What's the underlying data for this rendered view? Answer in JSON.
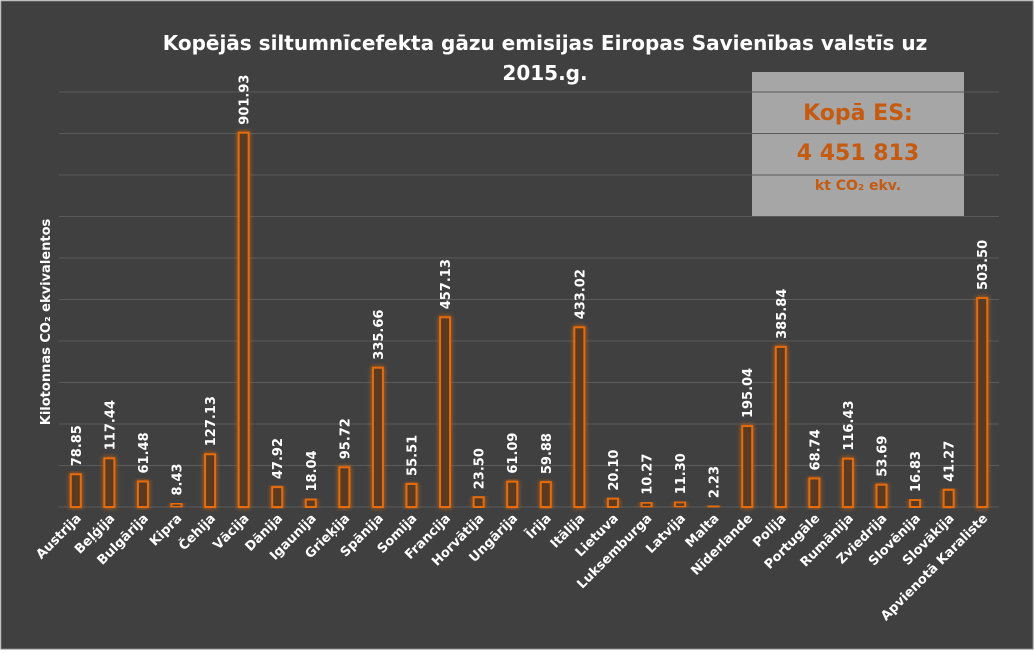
{
  "chart_data": {
    "type": "bar",
    "title": [
      "Kopējās siltumnīcefekta gāzu emisijas Eiropas Savienības valstīs uz",
      "2015.g."
    ],
    "y_label": "Kilotonnas CO₂ ekvivalentos",
    "annotation": [
      "Kopā ES:",
      "4 451 813",
      "kt CO₂ ekv."
    ],
    "categories": [
      "Austrija",
      "Beļģija",
      "Bulgārija",
      "Kipra",
      "Čehija",
      "Vācija",
      "Dānija",
      "Igaunija",
      "Grieķija",
      "Spānija",
      "Somija",
      "Francija",
      "Horvātija",
      "Ungārija",
      "Īrija",
      "Itālija",
      "Lietuva",
      "Luksemburga",
      "Latvija",
      "Malta",
      "Nīderlande",
      "Polija",
      "Portugāle",
      "Rumānija",
      "Zviedrija",
      "Slovēnija",
      "Slovākija",
      "Apvienotā Karaliste"
    ],
    "values": [
      78.85,
      117.44,
      61.48,
      8.43,
      127.13,
      901.93,
      47.92,
      18.04,
      95.72,
      335.66,
      55.51,
      457.13,
      23.5,
      61.09,
      59.88,
      433.02,
      20.1,
      10.27,
      11.3,
      2.23,
      195.04,
      385.84,
      68.74,
      116.43,
      53.69,
      16.83,
      41.27,
      503.5
    ],
    "value_labels": [
      "78.85",
      "117.44",
      "61.48",
      "8.43",
      "127.13",
      "901.93",
      "47.92",
      "18.04",
      "95.72",
      "335.66",
      "55.51",
      "457.13",
      "23.50",
      "61.09",
      "59.88",
      "433.02",
      "20.10",
      "10.27",
      "11.30",
      "2.23",
      "195.04",
      "385.84",
      "68.74",
      "116.43",
      "53.69",
      "16.83",
      "41.27",
      "503.50"
    ],
    "color": "#e46c0a",
    "ylim": [
      0,
      1000
    ],
    "yticks": [
      0,
      100,
      200,
      300,
      400,
      500,
      600,
      700,
      800,
      900,
      1000
    ],
    "grid": true
  }
}
